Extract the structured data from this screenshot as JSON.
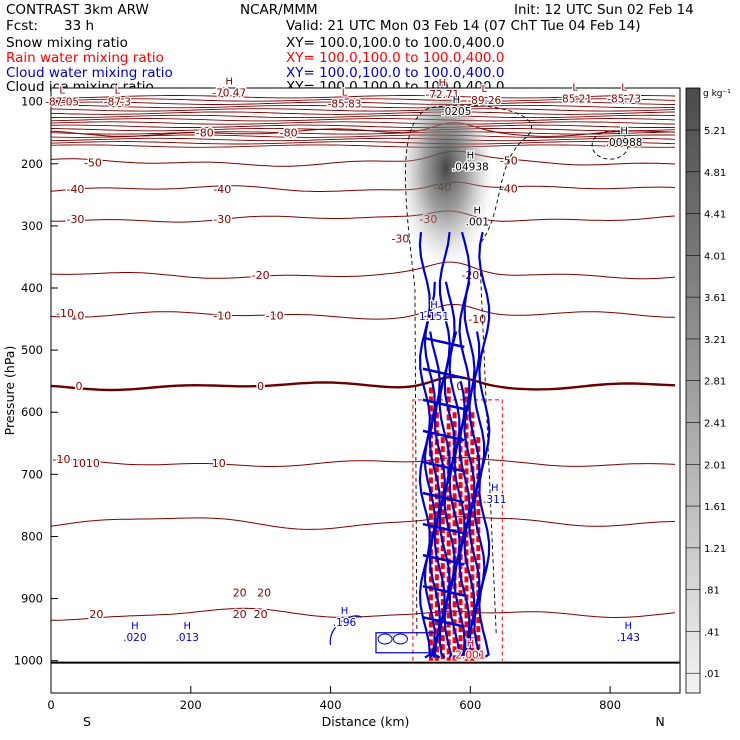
{
  "header": {
    "left_title": "CONTRAST  3km ARW",
    "center_title": "NCAR/MMM",
    "init_text": "Init: 12 UTC Sun 02 Feb 14",
    "fcst_label": "Fcst:",
    "fcst_value": "33 h",
    "valid_text": "Valid: 21 UTC Mon 03 Feb 14 (07 ChT Tue 04 Feb 14)",
    "fields": [
      {
        "name": "Snow mixing ratio",
        "xy": "XY= 100.0,100.0 to 100.0,400.0",
        "color": "#000000"
      },
      {
        "name": "Rain water mixing ratio",
        "xy": "XY= 100.0,100.0 to 100.0,400.0",
        "color": "#ff0000"
      },
      {
        "name": "Cloud water mixing ratio",
        "xy": "XY= 100.0,100.0 to 100.0,400.0",
        "color": "#0000cc"
      },
      {
        "name": "Cloud ice mixing ratio",
        "xy": "XY= 100.0,100.0 to 100.0,400.0",
        "color": "#000000"
      }
    ]
  },
  "colors": {
    "temperature": "#800000",
    "temperature_zero": "#6b0000",
    "rain": "#ff0000",
    "cloud_water": "#0000cc",
    "ice": "#000000"
  },
  "chart_data": {
    "type": "vertical cross-section",
    "xlabel": "Distance (km)",
    "ylabel": "Pressure (hPa)",
    "xlim": [
      0,
      900
    ],
    "ylim": [
      1040,
      50
    ],
    "x_ticks": [
      0,
      200,
      400,
      600,
      800
    ],
    "y_ticks": [
      100,
      200,
      300,
      400,
      500,
      600,
      700,
      800,
      900,
      1000
    ],
    "x_end_labels": {
      "left": "S",
      "right": "N"
    },
    "temperature_isotherms_C": [
      {
        "p": 925,
        "label": "20",
        "label_x": [
          65,
          270,
          300
        ]
      },
      {
        "p": 778,
        "label": "10",
        "label_x": []
      },
      {
        "p": 682,
        "label": "10",
        "label_x": [
          40,
          60,
          240
        ]
      },
      {
        "p": 558,
        "label": "0",
        "label_x": [
          40,
          300,
          585
        ]
      },
      {
        "p": 444,
        "label": "-10",
        "label_x": [
          35,
          245,
          545
        ]
      },
      {
        "p": 379,
        "label": "-20",
        "label_x": [
          300,
          600
        ]
      },
      {
        "p": 289,
        "label": "-30",
        "label_x": [
          35,
          245,
          540
        ]
      },
      {
        "p": 241,
        "label": "-40",
        "label_x": [
          35,
          245
        ]
      },
      {
        "p": 198,
        "label": "-50",
        "label_x": [
          60
        ]
      },
      {
        "p": 150,
        "label": "-80",
        "label_x": [
          220,
          340
        ]
      }
    ],
    "extra_labels": [
      {
        "text": "-10",
        "x": 15,
        "p": 675
      },
      {
        "text": "-10",
        "x": 20,
        "p": 440
      },
      {
        "text": "-40",
        "x": 655,
        "p": 240
      },
      {
        "text": "-50",
        "x": 655,
        "p": 195
      },
      {
        "text": "-40",
        "x": 560,
        "p": 237
      },
      {
        "text": "-30",
        "x": 500,
        "p": 320
      },
      {
        "text": "-10",
        "x": 610,
        "p": 450
      },
      {
        "text": "20",
        "x": 270,
        "p": 890
      },
      {
        "text": "20",
        "x": 305,
        "p": 890
      },
      {
        "text": "-10",
        "x": 320,
        "p": 444
      }
    ],
    "extrema": [
      {
        "kind": "L",
        "value": "-87.05",
        "x": 16,
        "p": 100,
        "color": "temperature"
      },
      {
        "kind": "L",
        "value": "-87.3",
        "x": 95,
        "p": 100,
        "color": "temperature"
      },
      {
        "kind": "H",
        "value": "-70.47",
        "x": 255,
        "p": 85,
        "color": "temperature"
      },
      {
        "kind": "L",
        "value": "-85.83",
        "x": 420,
        "p": 103,
        "color": "temperature"
      },
      {
        "kind": "H",
        "value": "-72.71",
        "x": 560,
        "p": 88,
        "color": "temperature"
      },
      {
        "kind": "L",
        "value": "-89.26",
        "x": 620,
        "p": 97,
        "color": "temperature"
      },
      {
        "kind": "L",
        "value": "-85.21",
        "x": 750,
        "p": 95,
        "color": "temperature"
      },
      {
        "kind": "L",
        "value": "-85.73",
        "x": 820,
        "p": 95,
        "color": "temperature"
      },
      {
        "kind": "H",
        "value": ".0205",
        "x": 580,
        "p": 115,
        "color": "ice"
      },
      {
        "kind": "H",
        "value": ".00988",
        "x": 820,
        "p": 165,
        "color": "ice"
      },
      {
        "kind": "H",
        "value": ".04938",
        "x": 600,
        "p": 204,
        "color": "ice"
      },
      {
        "kind": "H",
        "value": ".001",
        "x": 610,
        "p": 293,
        "color": "ice"
      },
      {
        "kind": "H",
        "value": ".020",
        "x": 120,
        "p": 962,
        "color": "cloud_water"
      },
      {
        "kind": "H",
        "value": ".013",
        "x": 195,
        "p": 962,
        "color": "cloud_water"
      },
      {
        "kind": "H",
        "value": ".196",
        "x": 420,
        "p": 938,
        "color": "cloud_water"
      },
      {
        "kind": "H",
        "value": ".143",
        "x": 826,
        "p": 962,
        "color": "cloud_water"
      },
      {
        "kind": "H",
        "value": "1.151",
        "x": 548,
        "p": 445,
        "color": "cloud_water"
      },
      {
        "kind": "H",
        "value": ".311",
        "x": 635,
        "p": 740,
        "color": "cloud_water"
      },
      {
        "kind": "H",
        "value": "2.001",
        "x": 600,
        "p": 990,
        "color": "rain"
      }
    ],
    "snow_plume": {
      "center_km": 565,
      "top_p": 110,
      "bottom_p": 400,
      "max_g_kg": 5.2
    },
    "convective_core_km": [
      535,
      620
    ],
    "colorbar": {
      "unit": "g kg⁻¹",
      "labels": [
        "5.21",
        "4.81",
        "4.41",
        "4.01",
        "3.61",
        "3.21",
        "2.81",
        "2.41",
        "2.01",
        "1.61",
        "1.21",
        ".81",
        ".41",
        ".01"
      ]
    }
  }
}
